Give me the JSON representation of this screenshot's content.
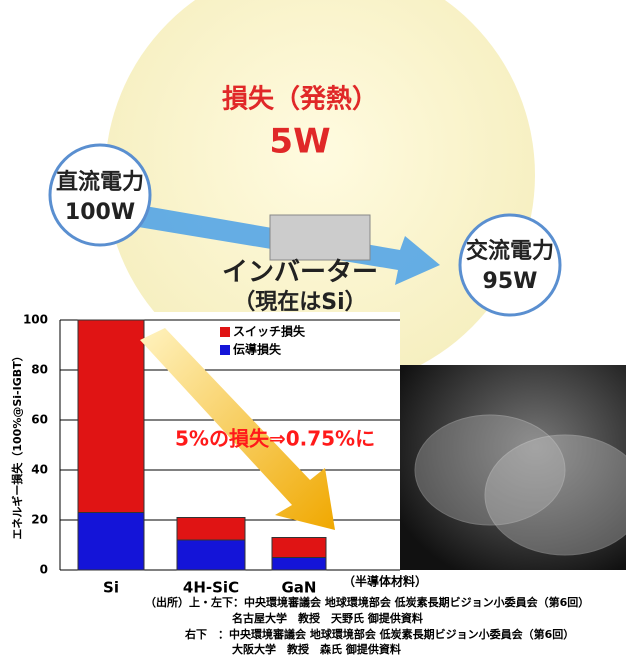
{
  "illustration": {
    "loss_title": "損失（発熱）",
    "loss_value": "5W",
    "dc_label": "直流電力",
    "dc_value": "100W",
    "inverter": "インバーター",
    "inverter_note": "（現在はSi）",
    "ac_label": "交流電力",
    "ac_value": "95W"
  },
  "chart_data": {
    "type": "stacked_bar",
    "y_label": "エネルギー損失（100%@Si-IGBT）",
    "x_label": "（半導体材料）",
    "annotation": "5%の損失⇒0.75%に",
    "categories": [
      "Si",
      "4H-SiC",
      "GaN"
    ],
    "series": [
      {
        "name": "伝導損失",
        "color": "#1414d8",
        "values": [
          23,
          12,
          5
        ]
      },
      {
        "name": "スイッチ損失",
        "color": "#e01414",
        "values": [
          77,
          9,
          8
        ]
      }
    ],
    "ylim": [
      0,
      100
    ],
    "yticks": [
      0,
      20,
      40,
      60,
      80,
      100
    ],
    "grid": true
  },
  "source": [
    "（出所）上・左下：中央環境審議会 地球環境部会 低炭素長期ビジョン小委員会（第6回）",
    "名古屋大学　教授　天野氏 御提供資料",
    "右下　：中央環境審議会 地球環境部会 低炭素長期ビジョン小委員会（第6回）",
    "大阪大学　教授　森氏 御提供資料"
  ]
}
